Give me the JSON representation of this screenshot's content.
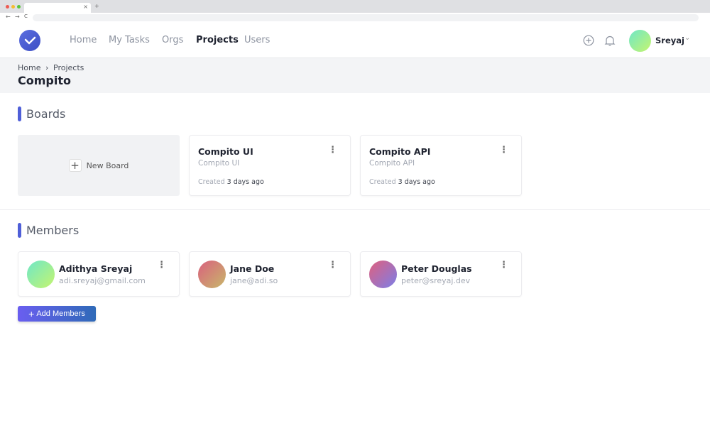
{
  "browser": {
    "tab_close": "×",
    "new_tab": "+",
    "back": "←",
    "forward": "→",
    "reload": "C"
  },
  "nav": {
    "items": [
      {
        "label": "Home"
      },
      {
        "label": "My Tasks"
      },
      {
        "label": "Orgs"
      },
      {
        "label": "Projects"
      },
      {
        "label": "Users"
      }
    ],
    "active": "Projects",
    "user_name": "Sreyaj",
    "chevron": "⌄"
  },
  "breadcrumb": {
    "items": [
      "Home",
      "Projects"
    ],
    "separator": "›"
  },
  "page_title": "Compito",
  "boards": {
    "heading": "Boards",
    "new_board_label": "New Board",
    "created_prefix": "Created",
    "items": [
      {
        "name": "Compito UI",
        "subtitle": "Compito UI",
        "created": "3 days ago"
      },
      {
        "name": "Compito API",
        "subtitle": "Compito API",
        "created": "3 days ago"
      }
    ]
  },
  "members": {
    "heading": "Members",
    "add_label": "Add Members",
    "items": [
      {
        "name": "Adithya Sreyaj",
        "email": "adi.sreyaj@gmail.com",
        "gradient": [
          "#6ee7c8",
          "#c6f56e"
        ]
      },
      {
        "name": "Jane Doe",
        "email": "jane@adi.so",
        "gradient": [
          "#d9607e",
          "#c8b86a"
        ]
      },
      {
        "name": "Peter Douglas",
        "email": "peter@sreyaj.dev",
        "gradient": [
          "#e0607e",
          "#7b7ee8"
        ]
      }
    ]
  },
  "colors": {
    "accent": "#4f5fd8",
    "button_start": "#6a5ef0",
    "button_end": "#2f6ab8"
  }
}
